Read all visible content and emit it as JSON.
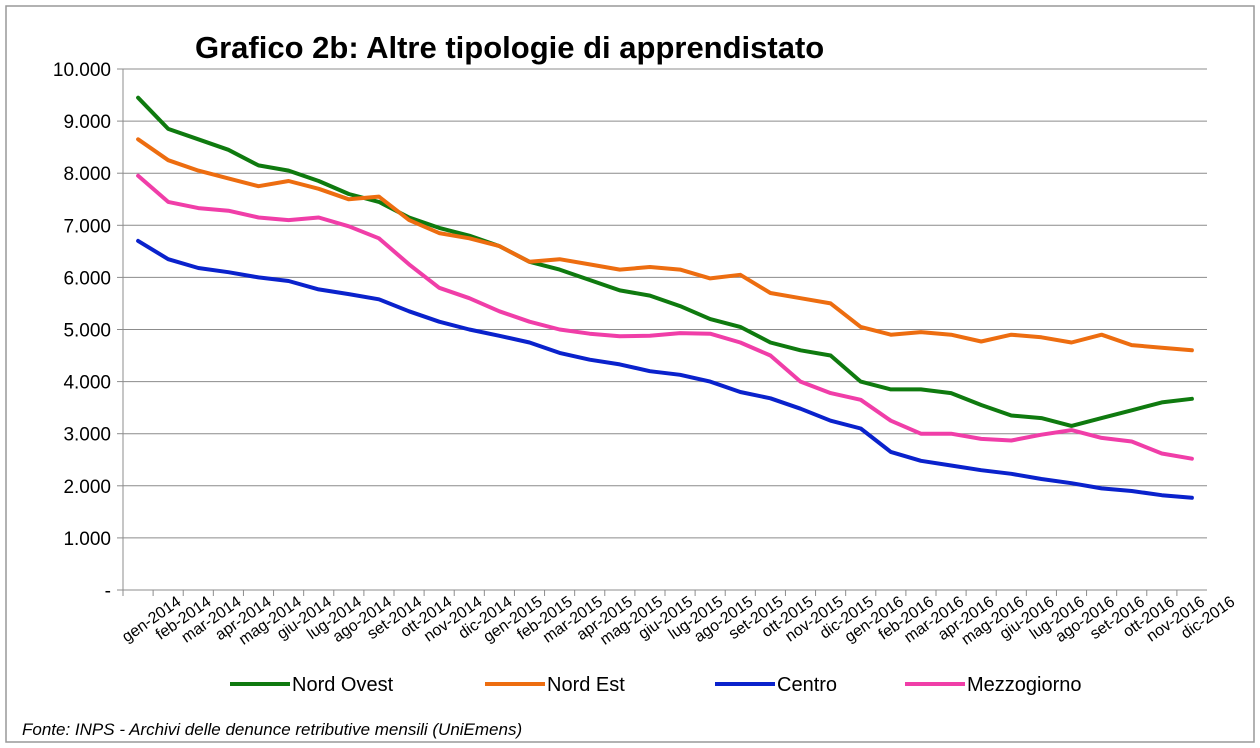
{
  "chart_data": {
    "type": "line",
    "title": "Grafico 2b: Altre tipologie di apprendistato",
    "footnote": "Fonte: INPS - Archivi delle denunce retributive mensili (UniEmens)",
    "categories": [
      "gen-2014",
      "feb-2014",
      "mar-2014",
      "apr-2014",
      "mag-2014",
      "giu-2014",
      "lug-2014",
      "ago-2014",
      "set-2014",
      "ott-2014",
      "nov-2014",
      "dic-2014",
      "gen-2015",
      "feb-2015",
      "mar-2015",
      "apr-2015",
      "mag-2015",
      "giu-2015",
      "lug-2015",
      "ago-2015",
      "set-2015",
      "ott-2015",
      "nov-2015",
      "dic-2015",
      "gen-2016",
      "feb-2016",
      "mar-2016",
      "apr-2016",
      "mag-2016",
      "giu-2016",
      "lug-2016",
      "ago-2016",
      "set-2016",
      "ott-2016",
      "nov-2016",
      "dic-2016"
    ],
    "series": [
      {
        "name": "Nord Ovest",
        "color": "#0f7a0f",
        "values": [
          9450,
          8850,
          8650,
          8450,
          8150,
          8050,
          7850,
          7600,
          7450,
          7150,
          6950,
          6800,
          6600,
          6300,
          6150,
          5950,
          5750,
          5650,
          5450,
          5200,
          5050,
          4750,
          4600,
          4500,
          4000,
          3850,
          3850,
          3780,
          3550,
          3350,
          3300,
          3150,
          3300,
          3450,
          3600,
          3670
        ]
      },
      {
        "name": "Nord Est",
        "color": "#ed6d10",
        "values": [
          8650,
          8250,
          8050,
          7900,
          7750,
          7850,
          7700,
          7500,
          7550,
          7100,
          6850,
          6750,
          6600,
          6300,
          6350,
          6250,
          6150,
          6200,
          6150,
          5980,
          6050,
          5700,
          5600,
          5500,
          5050,
          4900,
          4950,
          4900,
          4770,
          4900,
          4850,
          4750,
          4900,
          4700,
          4650,
          4600
        ]
      },
      {
        "name": "Centro",
        "color": "#0a22cc",
        "values": [
          6700,
          6350,
          6180,
          6100,
          6000,
          5930,
          5770,
          5680,
          5580,
          5350,
          5150,
          5000,
          4880,
          4750,
          4550,
          4420,
          4330,
          4200,
          4130,
          4000,
          3800,
          3680,
          3480,
          3250,
          3100,
          2650,
          2480,
          2390,
          2300,
          2230,
          2130,
          2050,
          1950,
          1900,
          1820,
          1770
        ]
      },
      {
        "name": "Mezzogiorno",
        "color": "#f03ea8",
        "values": [
          7950,
          7450,
          7330,
          7280,
          7150,
          7100,
          7150,
          6980,
          6750,
          6250,
          5800,
          5600,
          5350,
          5150,
          5000,
          4920,
          4870,
          4880,
          4930,
          4920,
          4750,
          4500,
          4000,
          3780,
          3650,
          3250,
          3000,
          3000,
          2900,
          2870,
          2980,
          3070,
          2920,
          2850,
          2620,
          2520
        ]
      }
    ],
    "ylim": [
      0,
      10000
    ],
    "yticks": [
      {
        "value": 0,
        "label": "-"
      },
      {
        "value": 1000,
        "label": "1.000"
      },
      {
        "value": 2000,
        "label": "2.000"
      },
      {
        "value": 3000,
        "label": "3.000"
      },
      {
        "value": 4000,
        "label": "4.000"
      },
      {
        "value": 5000,
        "label": "5.000"
      },
      {
        "value": 6000,
        "label": "6.000"
      },
      {
        "value": 7000,
        "label": "7.000"
      },
      {
        "value": 8000,
        "label": "8.000"
      },
      {
        "value": 9000,
        "label": "9.000"
      },
      {
        "value": 10000,
        "label": "10.000"
      }
    ],
    "grid": true
  }
}
